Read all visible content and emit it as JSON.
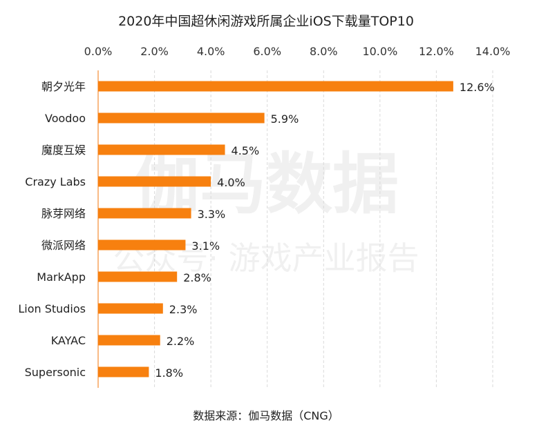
{
  "chart_data": {
    "type": "bar",
    "orientation": "horizontal",
    "title": "2020年中国超休闲游戏所属企业iOS下载量TOP10",
    "categories": [
      "朝夕光年",
      "Voodoo",
      "魔度互娱",
      "Crazy Labs",
      "脉芽网络",
      "微派网络",
      "MarkApp",
      "Lion Studios",
      "KAYAC",
      "Supersonic"
    ],
    "values": [
      12.6,
      5.9,
      4.5,
      4.0,
      3.3,
      3.1,
      2.8,
      2.3,
      2.2,
      1.8
    ],
    "data_labels": [
      "12.6%",
      "5.9%",
      "4.5%",
      "4.0%",
      "3.3%",
      "3.1%",
      "2.8%",
      "2.3%",
      "2.2%",
      "1.8%"
    ],
    "xlim": [
      0,
      14
    ],
    "x_ticks": [
      0,
      2,
      4,
      6,
      8,
      10,
      12,
      14
    ],
    "x_tick_labels": [
      "0.0%",
      "2.0%",
      "4.0%",
      "6.0%",
      "8.0%",
      "10.0%",
      "12.0%",
      "14.0%"
    ],
    "x_axis_position": "top",
    "grid": "vertical dashed",
    "legend": "none",
    "bar_color": "#f7800f",
    "source": "数据来源：伽马数据（CNG）"
  },
  "watermark": {
    "main": "伽马数据",
    "sub": "公众号· 游戏产业报告"
  }
}
